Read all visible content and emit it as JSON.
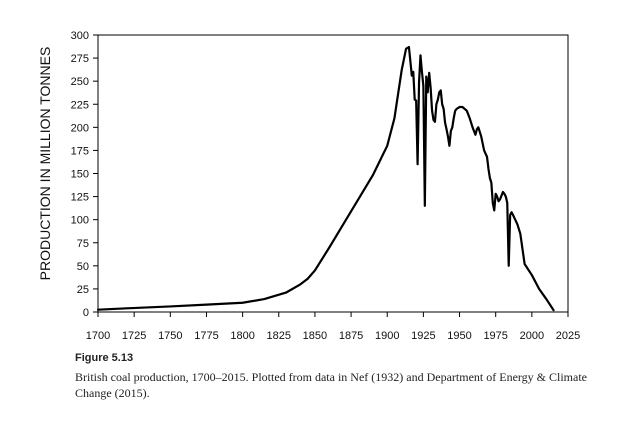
{
  "chart_data": {
    "type": "line",
    "ylabel": "PRODUCTION IN MILLION TONNES",
    "xlabel": "",
    "xlim": [
      1700,
      2025
    ],
    "ylim": [
      0,
      300
    ],
    "x_ticks": [
      1700,
      1725,
      1750,
      1775,
      1800,
      1825,
      1850,
      1875,
      1900,
      1925,
      1950,
      1975,
      2000,
      2025
    ],
    "y_ticks": [
      0,
      25,
      50,
      75,
      100,
      125,
      150,
      175,
      200,
      225,
      250,
      275,
      300
    ],
    "grid": false,
    "series": [
      {
        "x": [
          1700,
          1720,
          1750,
          1775,
          1800,
          1815,
          1830,
          1840,
          1845,
          1850,
          1860,
          1870,
          1880,
          1890,
          1900,
          1905,
          1910,
          1913,
          1915,
          1917,
          1918,
          1919,
          1920,
          1921,
          1922,
          1923,
          1924,
          1925,
          1926,
          1927,
          1928,
          1929,
          1930,
          1931,
          1932,
          1933,
          1934,
          1935,
          1936,
          1937,
          1938,
          1939,
          1940,
          1941,
          1942,
          1943,
          1944,
          1945,
          1946,
          1947,
          1948,
          1950,
          1952,
          1955,
          1957,
          1959,
          1961,
          1962,
          1963,
          1965,
          1967,
          1969,
          1970,
          1971,
          1972,
          1973,
          1974,
          1975,
          1976,
          1977,
          1978,
          1980,
          1981,
          1982,
          1983,
          1984,
          1985,
          1986,
          1987,
          1990,
          1992,
          1995,
          2000,
          2005,
          2010,
          2015
        ],
        "y": [
          2.5,
          4,
          6,
          8,
          10,
          14,
          21,
          30,
          36,
          45,
          70,
          96,
          122,
          148,
          180,
          210,
          262,
          285,
          287,
          256,
          260,
          230,
          229,
          160,
          249,
          278,
          260,
          245,
          115,
          255,
          238,
          259,
          243,
          218,
          208,
          206,
          225,
          230,
          238,
          240,
          225,
          220,
          205,
          198,
          190,
          180,
          196,
          200,
          210,
          218,
          220,
          222,
          222,
          218,
          210,
          200,
          192,
          198,
          200,
          190,
          175,
          168,
          155,
          145,
          140,
          118,
          110,
          128,
          125,
          120,
          122,
          130,
          128,
          125,
          118,
          50,
          105,
          108,
          105,
          95,
          85,
          52,
          40,
          25,
          14,
          2
        ]
      }
    ]
  },
  "caption": {
    "label": "Figure 5.13",
    "text": "British coal production, 1700–2015. Plotted from data in Nef (1932) and Department of Energy & Climate Change (2015)."
  }
}
